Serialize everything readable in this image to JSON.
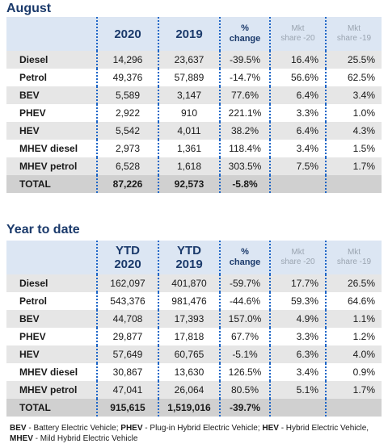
{
  "august": {
    "title": "August",
    "headers": [
      "",
      "2020",
      "2019",
      "%\nchange",
      "Mkt\nshare -20",
      "Mkt\nshare -19"
    ],
    "rows": [
      {
        "label": "Diesel",
        "v1": "14,296",
        "v2": "23,637",
        "chg": "-39.5%",
        "s1": "16.4%",
        "s2": "25.5%"
      },
      {
        "label": "Petrol",
        "v1": "49,376",
        "v2": "57,889",
        "chg": "-14.7%",
        "s1": "56.6%",
        "s2": "62.5%"
      },
      {
        "label": "BEV",
        "v1": "5,589",
        "v2": "3,147",
        "chg": "77.6%",
        "s1": "6.4%",
        "s2": "3.4%"
      },
      {
        "label": "PHEV",
        "v1": "2,922",
        "v2": "910",
        "chg": "221.1%",
        "s1": "3.3%",
        "s2": "1.0%"
      },
      {
        "label": "HEV",
        "v1": "5,542",
        "v2": "4,011",
        "chg": "38.2%",
        "s1": "6.4%",
        "s2": "4.3%"
      },
      {
        "label": "MHEV diesel",
        "v1": "2,973",
        "v2": "1,361",
        "chg": "118.4%",
        "s1": "3.4%",
        "s2": "1.5%"
      },
      {
        "label": "MHEV petrol",
        "v1": "6,528",
        "v2": "1,618",
        "chg": "303.5%",
        "s1": "7.5%",
        "s2": "1.7%"
      }
    ],
    "total": {
      "label": "TOTAL",
      "v1": "87,226",
      "v2": "92,573",
      "chg": "-5.8%"
    }
  },
  "ytd": {
    "title": "Year to date",
    "headers": [
      "",
      "YTD 2020",
      "YTD 2019",
      "%\nchange",
      "Mkt\nshare -20",
      "Mkt\nshare -19"
    ],
    "rows": [
      {
        "label": "Diesel",
        "v1": "162,097",
        "v2": "401,870",
        "chg": "-59.7%",
        "s1": "17.7%",
        "s2": "26.5%"
      },
      {
        "label": "Petrol",
        "v1": "543,376",
        "v2": "981,476",
        "chg": "-44.6%",
        "s1": "59.3%",
        "s2": "64.6%"
      },
      {
        "label": "BEV",
        "v1": "44,708",
        "v2": "17,393",
        "chg": "157.0%",
        "s1": "4.9%",
        "s2": "1.1%"
      },
      {
        "label": "PHEV",
        "v1": "29,877",
        "v2": "17,818",
        "chg": "67.7%",
        "s1": "3.3%",
        "s2": "1.2%"
      },
      {
        "label": "HEV",
        "v1": "57,649",
        "v2": "60,765",
        "chg": "-5.1%",
        "s1": "6.3%",
        "s2": "4.0%"
      },
      {
        "label": "MHEV diesel",
        "v1": "30,867",
        "v2": "13,630",
        "chg": "126.5%",
        "s1": "3.4%",
        "s2": "0.9%"
      },
      {
        "label": "MHEV petrol",
        "v1": "47,041",
        "v2": "26,064",
        "chg": "80.5%",
        "s1": "5.1%",
        "s2": "1.7%"
      }
    ],
    "total": {
      "label": "TOTAL",
      "v1": "915,615",
      "v2": "1,519,016",
      "chg": "-39.7%"
    }
  },
  "footnote": {
    "items": [
      {
        "abbr": "BEV",
        "text": " - Battery Electric Vehicle; "
      },
      {
        "abbr": "PHEV",
        "text": " - Plug-in Hybrid Electric Vehicle; "
      },
      {
        "abbr": "HEV",
        "text": " - Hybrid Electric Vehicle, "
      },
      {
        "abbr": "MHEV",
        "text": " - Mild Hybrid Electric Vehicle"
      }
    ]
  },
  "colors": {
    "title": "#1b3a6b",
    "header_bg": "#dce6f3",
    "row_shade": "#e6e6e6",
    "total_bg": "#d0d0d0",
    "divider": "#1e66c7"
  }
}
